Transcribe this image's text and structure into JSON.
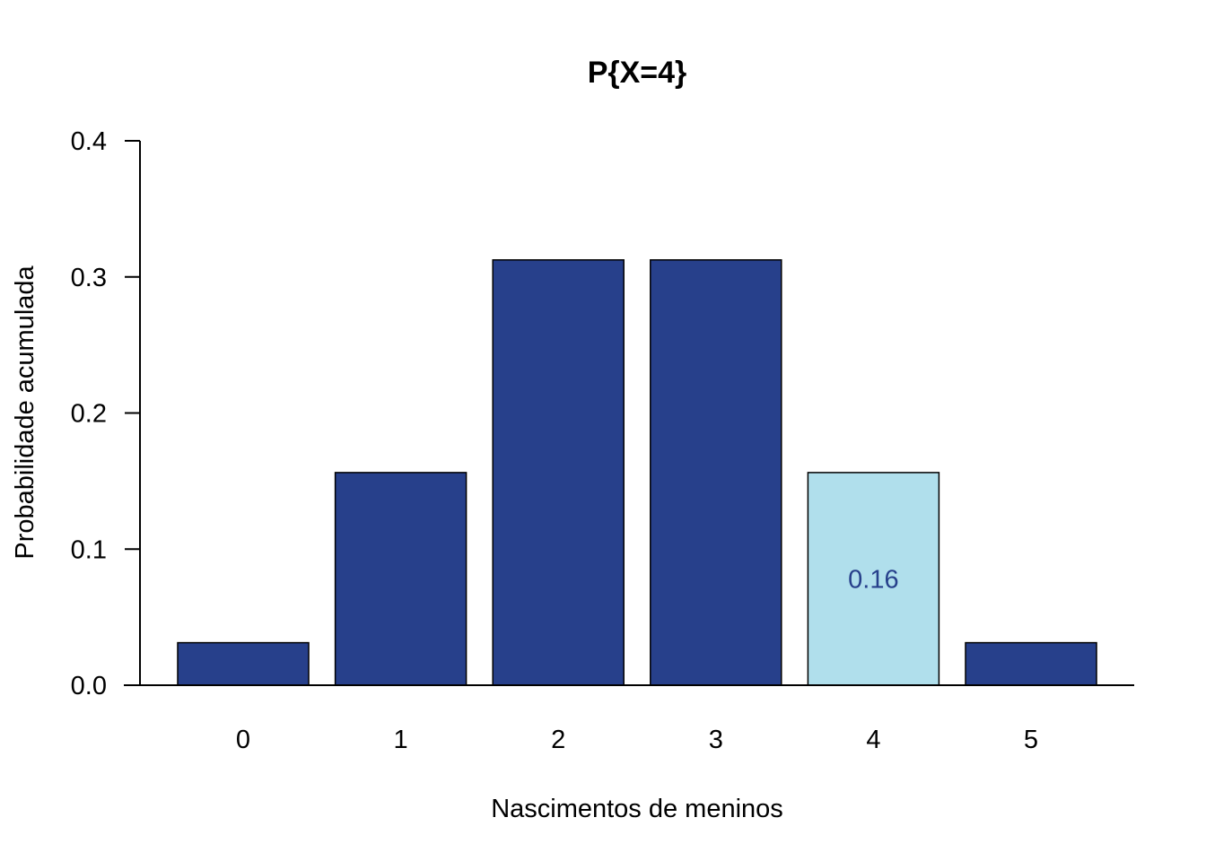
{
  "chart_data": {
    "type": "bar",
    "title": "P{X=4}",
    "xlabel": "Nascimentos de meninos",
    "ylabel": "Probabilidade acumulada",
    "categories": [
      "0",
      "1",
      "2",
      "3",
      "4",
      "5"
    ],
    "values": [
      0.03125,
      0.15625,
      0.3125,
      0.3125,
      0.15625,
      0.03125
    ],
    "ylim": [
      0,
      0.4
    ],
    "yticks": [
      "0.0",
      "0.1",
      "0.2",
      "0.3",
      "0.4"
    ],
    "highlight_index": 4,
    "highlight_label": "0.16",
    "grid": false,
    "legend": "none",
    "colors": {
      "bar": "#27408b",
      "highlight": "#b0dfec",
      "label": "#27408b",
      "axis": "#000000"
    }
  }
}
